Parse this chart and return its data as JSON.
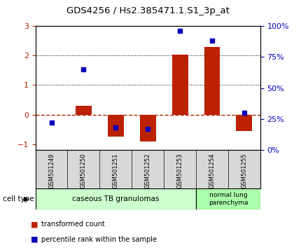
{
  "title": "GDS4256 / Hs2.385471.1.S1_3p_at",
  "samples": [
    "GSM501249",
    "GSM501250",
    "GSM501251",
    "GSM501252",
    "GSM501253",
    "GSM501254",
    "GSM501255"
  ],
  "transformed_counts": [
    0.0,
    0.3,
    -0.75,
    -0.9,
    2.02,
    2.3,
    -0.55
  ],
  "percentile_ranks_pct": [
    22,
    65,
    18,
    17,
    96,
    88,
    30
  ],
  "red_color": "#bb2200",
  "blue_color": "#0000bb",
  "left_ylim": [
    -1.2,
    3.0
  ],
  "right_ylim": [
    0,
    100
  ],
  "left_yticks": [
    -1,
    0,
    1,
    2,
    3
  ],
  "right_yticks": [
    0,
    25,
    50,
    75,
    100
  ],
  "right_yticklabels": [
    "0%",
    "25%",
    "50%",
    "75%",
    "100%"
  ],
  "group1_label": "caseous TB granulomas",
  "group2_label": "normal lung\nparenchyma",
  "group1_indices": [
    0,
    1,
    2,
    3,
    4
  ],
  "group2_indices": [
    5,
    6
  ],
  "cell_type_label": "cell type",
  "legend_red": "transformed count",
  "legend_blue": "percentile rank within the sample",
  "sample_bg_color": "#d8d8d8",
  "plot_bg": "#ffffff",
  "group1_color": "#ccffcc",
  "group2_color": "#aaffaa",
  "bar_width": 0.5
}
